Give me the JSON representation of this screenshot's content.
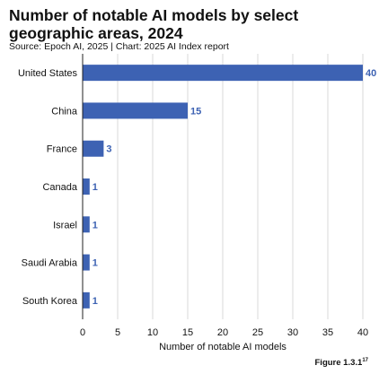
{
  "header": {
    "title": "Number of notable AI models by select geographic areas, 2024",
    "source": "Source: Epoch AI, 2025 | Chart: 2025 AI Index report",
    "figure": "Figure 1.3.1",
    "figure_sup": "17"
  },
  "colors": {
    "bar": "#3d62b3",
    "value_label": "#3d62b3",
    "grid": "#d9d9d9"
  },
  "chart_data": {
    "type": "bar",
    "orientation": "horizontal",
    "categories": [
      "United States",
      "China",
      "France",
      "Canada",
      "Israel",
      "Saudi Arabia",
      "South Korea"
    ],
    "values": [
      40,
      15,
      3,
      1,
      1,
      1,
      1
    ],
    "data_labels": [
      "40",
      "15",
      "3",
      "1",
      "1",
      "1",
      "1"
    ],
    "xlabel": "Number of notable AI models",
    "ylabel": "",
    "xlim": [
      0,
      40
    ],
    "xticks": [
      0,
      5,
      10,
      15,
      20,
      25,
      30,
      35,
      40
    ],
    "grid": "vertical"
  }
}
